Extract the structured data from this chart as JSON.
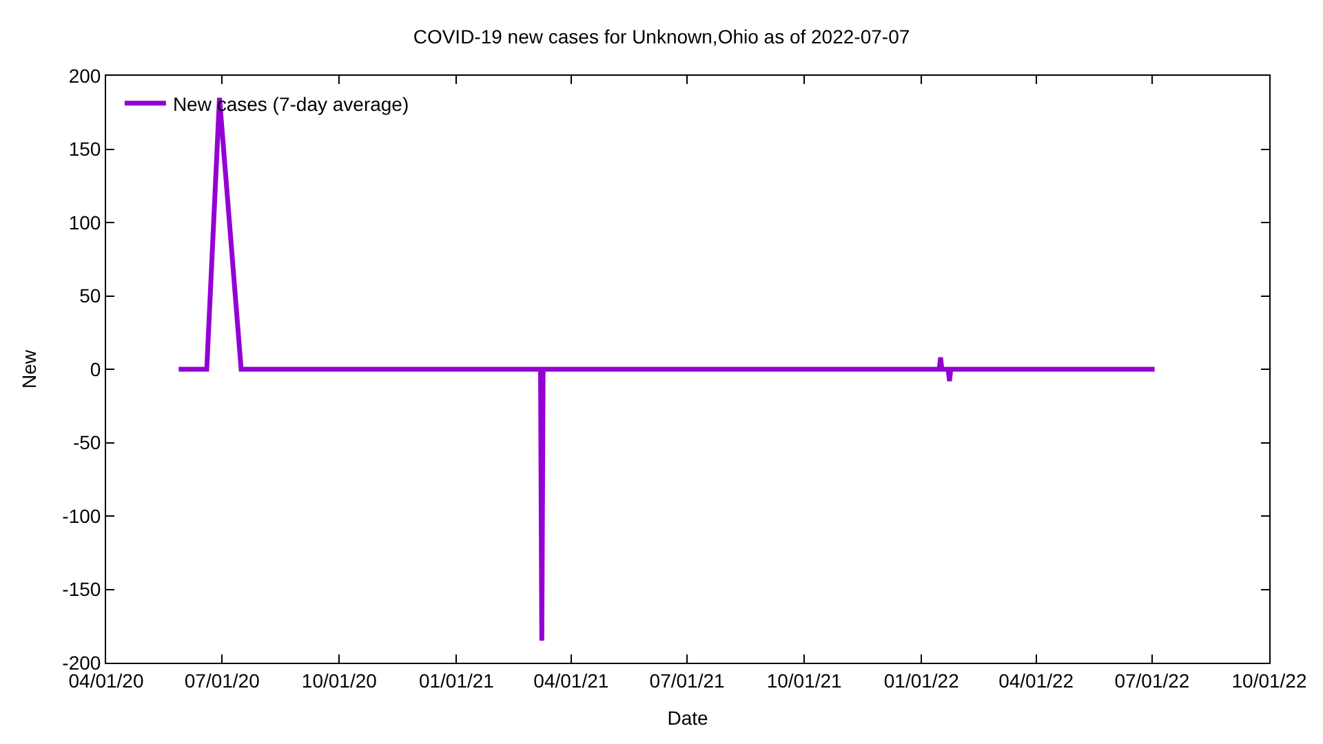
{
  "chart_data": {
    "type": "line",
    "title": "COVID-19 new cases for Unknown,Ohio as of 2022-07-07",
    "xlabel": "Date",
    "ylabel": "New",
    "series": [
      {
        "name": "New cases (7-day average)",
        "color": "#9400d3",
        "x": [
          "2020-05-28",
          "2020-06-19",
          "2020-06-29",
          "2020-07-16",
          "2021-03-08",
          "2021-03-09",
          "2021-03-10",
          "2022-01-15",
          "2022-01-16",
          "2022-01-17",
          "2022-01-22",
          "2022-01-23",
          "2022-01-24",
          "2022-07-03"
        ],
        "values": [
          0,
          0,
          185,
          0,
          0,
          -185,
          0,
          0,
          8,
          0,
          0,
          -8,
          0,
          0
        ]
      }
    ],
    "xlim": [
      "2020-04-01",
      "2022-10-01"
    ],
    "xticks": [
      {
        "value": "2020-04-01",
        "label": "04/01/20"
      },
      {
        "value": "2020-07-01",
        "label": "07/01/20"
      },
      {
        "value": "2020-10-01",
        "label": "10/01/20"
      },
      {
        "value": "2021-01-01",
        "label": "01/01/21"
      },
      {
        "value": "2021-04-01",
        "label": "04/01/21"
      },
      {
        "value": "2021-07-01",
        "label": "07/01/21"
      },
      {
        "value": "2021-10-01",
        "label": "10/01/21"
      },
      {
        "value": "2022-01-01",
        "label": "01/01/22"
      },
      {
        "value": "2022-04-01",
        "label": "04/01/22"
      },
      {
        "value": "2022-07-01",
        "label": "07/01/22"
      },
      {
        "value": "2022-10-01",
        "label": "10/01/22"
      }
    ],
    "ylim": [
      -200,
      200
    ],
    "yticks": [
      -200,
      -150,
      -100,
      -50,
      0,
      50,
      100,
      150,
      200
    ],
    "legend": "top left",
    "line_style": "solid",
    "marker": "none"
  }
}
